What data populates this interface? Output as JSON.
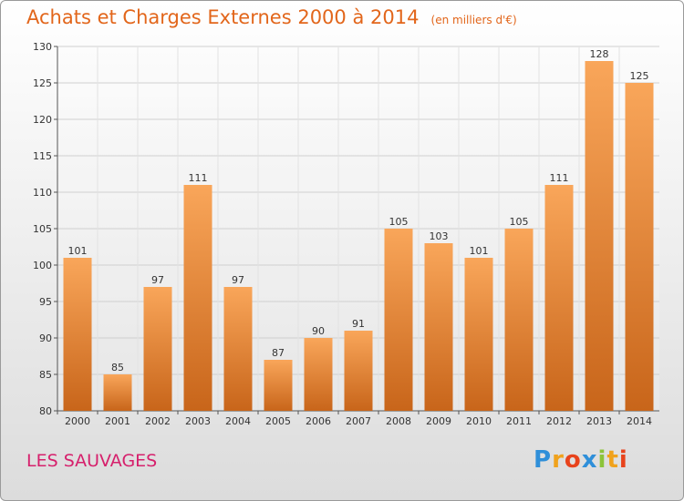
{
  "header": {
    "title": "Achats et Charges Externes 2000 à 2014",
    "subtitle": "(en milliers d'€)"
  },
  "footer": {
    "location": "LES SAUVAGES",
    "logo_letters": [
      "P",
      "r",
      "o",
      "x",
      "i",
      "t",
      "i"
    ],
    "logo_colors": [
      "#2f8fd9",
      "#f0a21c",
      "#e8431c",
      "#2f8fd9",
      "#8cc43a",
      "#f0a21c",
      "#e8431c"
    ]
  },
  "colors": {
    "title": "#e2661b",
    "location": "#d6206c",
    "bar_top": "#f9a65a",
    "bar_bottom": "#c8651a"
  },
  "chart_data": {
    "type": "bar",
    "title": "Achats et Charges Externes 2000 à 2014",
    "subtitle": "(en milliers d'€)",
    "categories": [
      "2000",
      "2001",
      "2002",
      "2003",
      "2004",
      "2005",
      "2006",
      "2007",
      "2008",
      "2009",
      "2010",
      "2011",
      "2012",
      "2013",
      "2014"
    ],
    "values": [
      101,
      85,
      97,
      111,
      97,
      87,
      90,
      91,
      105,
      103,
      101,
      105,
      111,
      128,
      125
    ],
    "ylim": [
      80,
      130
    ],
    "yticks": [
      80,
      85,
      90,
      95,
      100,
      105,
      110,
      115,
      120,
      125,
      130
    ],
    "grid": true,
    "xlabel": "",
    "ylabel": ""
  }
}
